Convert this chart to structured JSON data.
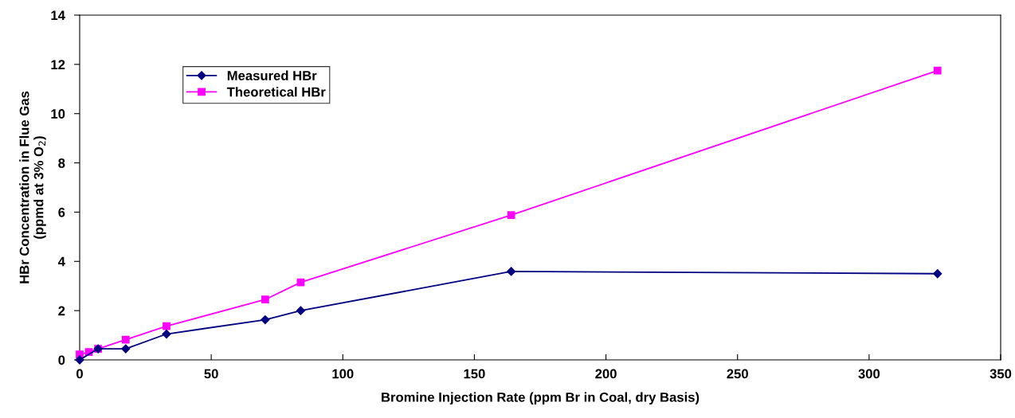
{
  "chart_data": {
    "type": "line",
    "xlabel": "Bromine Injection Rate (ppm Br in Coal, dry Basis)",
    "ylabel": "HBr Concentration in Flue Gas\n(ppmd at 3% O$_{2}$)",
    "series": [
      {
        "name": "Measured HBr",
        "color": "#000080",
        "marker": "diamond",
        "x": [
          0,
          7,
          17.5,
          33,
          70.5,
          84,
          164,
          326
        ],
        "values": [
          0,
          0.45,
          0.45,
          1.05,
          1.63,
          2.0,
          3.59,
          3.5
        ]
      },
      {
        "name": "Theoretical HBr",
        "color": "#ff00ff",
        "marker": "square",
        "x": [
          0,
          3.5,
          7,
          17.5,
          33,
          70.5,
          84,
          164,
          326
        ],
        "values": [
          0.22,
          0.32,
          0.45,
          0.82,
          1.37,
          2.45,
          3.15,
          5.88,
          11.75
        ]
      }
    ],
    "xlim": [
      0,
      350
    ],
    "xticks": [
      0,
      50,
      100,
      150,
      200,
      250,
      300,
      350
    ],
    "ylim": [
      0,
      14
    ],
    "yticks": [
      0,
      2,
      4,
      6,
      8,
      10,
      12,
      14
    ],
    "grid": false,
    "legend": "top left",
    "line_style": "solid"
  }
}
